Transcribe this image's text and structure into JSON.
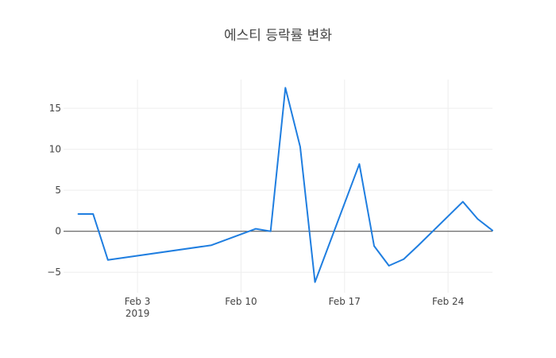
{
  "chart_data": {
    "type": "line",
    "title": "에스티 등락률 변화",
    "xlabel": "",
    "ylabel": "",
    "x": [
      "2019-01-30",
      "2019-01-31",
      "2019-02-01",
      "2019-02-08",
      "2019-02-11",
      "2019-02-12",
      "2019-02-13",
      "2019-02-14",
      "2019-02-15",
      "2019-02-18",
      "2019-02-19",
      "2019-02-20",
      "2019-02-21",
      "2019-02-22",
      "2019-02-25",
      "2019-02-26",
      "2019-02-27"
    ],
    "series": [
      {
        "values": [
          2.1,
          2.1,
          -3.5,
          -1.7,
          0.3,
          0.0,
          17.5,
          10.3,
          -6.2,
          8.2,
          -1.8,
          -4.2,
          -3.4,
          -1.7,
          3.6,
          1.5,
          0.1
        ]
      }
    ],
    "xlim": [
      "2019-01-29",
      "2019-02-27"
    ],
    "ylim": [
      -7.5,
      18.5
    ],
    "xticks": [
      {
        "value": "2019-02-03",
        "label": "Feb 3",
        "sublabel": "2019"
      },
      {
        "value": "2019-02-10",
        "label": "Feb 10",
        "sublabel": ""
      },
      {
        "value": "2019-02-17",
        "label": "Feb 17",
        "sublabel": ""
      },
      {
        "value": "2019-02-24",
        "label": "Feb 24",
        "sublabel": ""
      }
    ],
    "yticks": [
      {
        "value": 15,
        "label": "15"
      },
      {
        "value": 10,
        "label": "10"
      },
      {
        "value": 5,
        "label": "5"
      },
      {
        "value": 0,
        "label": "0"
      },
      {
        "value": -5,
        "label": "−5"
      }
    ],
    "grid": true,
    "line_color": "#1f7ee0",
    "zero_line_color": "#444444",
    "grid_color": "#eeeeee"
  }
}
